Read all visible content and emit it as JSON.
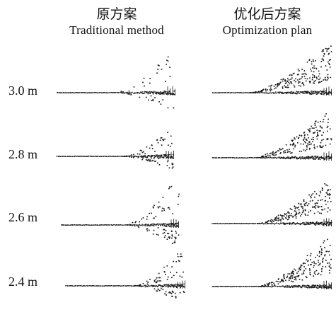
{
  "columns": [
    {
      "title_cn": "原方案",
      "title_en": "Traditional method"
    },
    {
      "title_cn": "优化后方案",
      "title_en": "Optimization plan"
    }
  ],
  "rows": [
    {
      "label": "3.0 m"
    },
    {
      "label": "2.8 m"
    },
    {
      "label": "2.6 m"
    },
    {
      "label": "2.4 m"
    }
  ],
  "colors": {
    "ink": "#1a1a1a",
    "background": "#ffffff"
  }
}
